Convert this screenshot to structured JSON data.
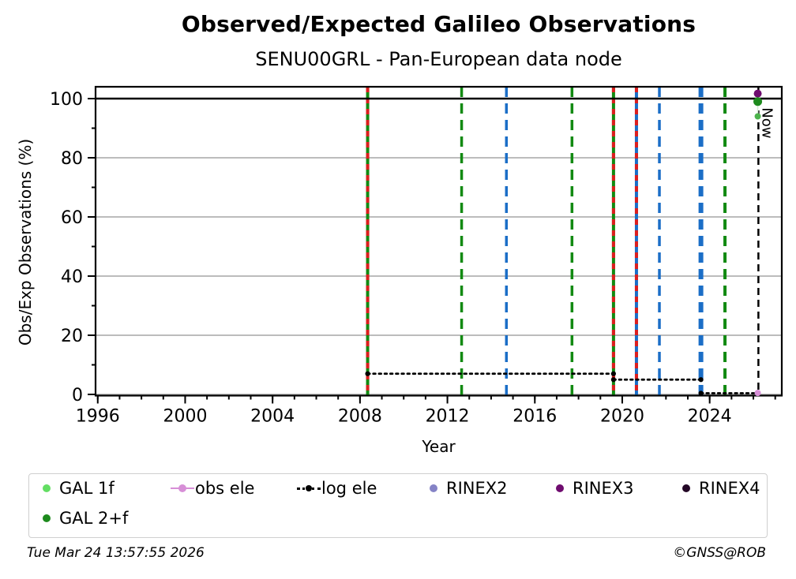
{
  "header": {
    "title": "Observed/Expected Galileo Observations",
    "subtitle": "SENU00GRL - Pan-European data node"
  },
  "footer": {
    "timestamp": "Tue Mar 24 13:57:55 2026",
    "credit": "©GNSS@ROB"
  },
  "legend": {
    "items": [
      {
        "label": "GAL 1f",
        "marker": "dot",
        "color": "#63de63"
      },
      {
        "label": "obs ele",
        "marker": "line-dot",
        "color": "#d78fd7"
      },
      {
        "label": "log ele",
        "marker": "dotted-line-dot",
        "color": "#000000"
      },
      {
        "label": "RINEX2",
        "marker": "dot",
        "color": "#8583c6"
      },
      {
        "label": "RINEX3",
        "marker": "dot",
        "color": "#6f0c6f"
      },
      {
        "label": "RINEX4",
        "marker": "dot",
        "color": "#230726"
      },
      {
        "label": "GAL 2+f",
        "marker": "dot",
        "color": "#1d8a1d"
      }
    ]
  },
  "chart_data": {
    "type": "line",
    "title": "Observed/Expected Galileo Observations",
    "subtitle": "SENU00GRL - Pan-European data node",
    "xlabel": "Year",
    "ylabel": "Obs/Exp Observations (%)",
    "xlim": [
      1995.9,
      2027.3
    ],
    "ylim": [
      -0.5,
      104.3
    ],
    "x_major_ticks": [
      1996,
      2000,
      2004,
      2008,
      2012,
      2016,
      2020,
      2024
    ],
    "x_minor_tick_step": 1,
    "y_major_ticks": [
      0,
      20,
      40,
      60,
      80,
      100
    ],
    "y_minor_ticks": [
      10,
      30,
      50,
      70,
      90
    ],
    "grid_y_values": [
      0,
      20,
      40,
      60,
      80
    ],
    "reference_line_y": 100,
    "grid_color": "#b3b3b3",
    "event_lines": [
      {
        "year": 2008.35,
        "color": "#128a12",
        "style": "solid",
        "width": 4,
        "overlay_red": true
      },
      {
        "year": 2012.65,
        "color": "#128a12",
        "style": "dashed",
        "width": 3.5,
        "overlay_red": false
      },
      {
        "year": 2014.7,
        "color": "#1b6ec7",
        "style": "dashed",
        "width": 3.5,
        "overlay_red": false
      },
      {
        "year": 2017.7,
        "color": "#128a12",
        "style": "dashed",
        "width": 3.5,
        "overlay_red": false
      },
      {
        "year": 2019.6,
        "color": "#128a12",
        "style": "solid",
        "width": 4,
        "overlay_red": true
      },
      {
        "year": 2020.65,
        "color": "#1b6ec7",
        "style": "solid",
        "width": 4,
        "overlay_red": true
      },
      {
        "year": 2021.7,
        "color": "#1b6ec7",
        "style": "dashed",
        "width": 3.5,
        "overlay_red": false
      },
      {
        "year": 2023.6,
        "color": "#1b6ec7",
        "style": "dashed",
        "width": 6,
        "overlay_red": false
      },
      {
        "year": 2024.7,
        "color": "#128a12",
        "style": "dashed",
        "width": 4,
        "overlay_red": false
      }
    ],
    "overlay_red_color": "#dc1e1e",
    "log_ele": {
      "label": "log ele",
      "color": "#000000",
      "segments": [
        {
          "x": [
            2008.35,
            2019.6
          ],
          "y": 7
        },
        {
          "x": [
            2019.6,
            2023.6
          ],
          "y": 5
        },
        {
          "x": [
            2023.6,
            2026.2
          ],
          "y": 0.4
        }
      ]
    },
    "points": [
      {
        "series": "RINEX3",
        "x": 2026.2,
        "y": 101.7,
        "color": "#6f0c6f",
        "r": 5
      },
      {
        "series": "GAL 2+f",
        "x": 2026.2,
        "y": 99.0,
        "color": "#1d8a1d",
        "r": 5.5
      },
      {
        "series": "GAL 1f",
        "x": 2026.2,
        "y": 94.0,
        "color": "#4db44d",
        "r": 4
      },
      {
        "series": "obs ele",
        "x": 2026.2,
        "y": 0.5,
        "color": "#d78fd7",
        "r": 4
      }
    ],
    "gal_connector_color": "#d5ecd5",
    "now_line": {
      "x": 2026.23,
      "label": "Now",
      "color": "#000000"
    }
  }
}
